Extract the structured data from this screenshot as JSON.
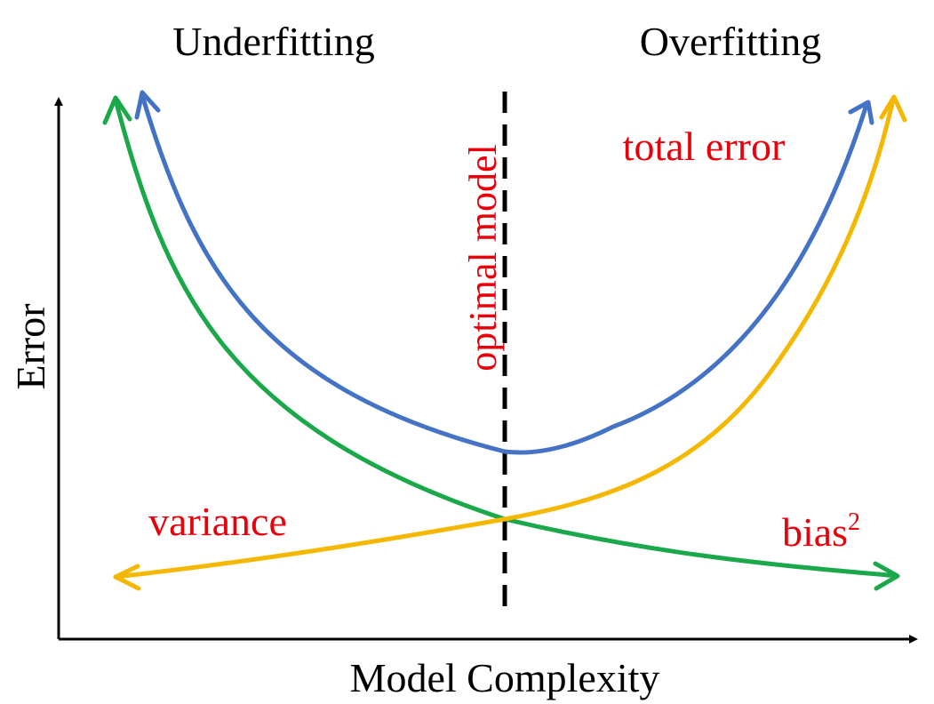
{
  "labels": {
    "underfitting": "Underfitting",
    "overfitting": "Overfitting",
    "x_axis": "Model Complexity",
    "y_axis": "Error",
    "optimal_model": "optimal model",
    "total_error": "total error",
    "variance": "variance",
    "bias": "bias",
    "bias_exponent": "2"
  },
  "colors": {
    "axis": "#000000",
    "total_error_curve": "#4472C4",
    "variance_curve": "#F5B800",
    "bias_curve": "#1AA84A",
    "annotation_text": "#E8000B",
    "optimal_line": "#000000"
  },
  "curves": {
    "total_error": {
      "name": "total error",
      "shape": "u-shaped, minimum at optimal model"
    },
    "variance": {
      "name": "variance",
      "shape": "increasing with model complexity"
    },
    "bias": {
      "name": "bias²",
      "shape": "decreasing with model complexity"
    }
  }
}
